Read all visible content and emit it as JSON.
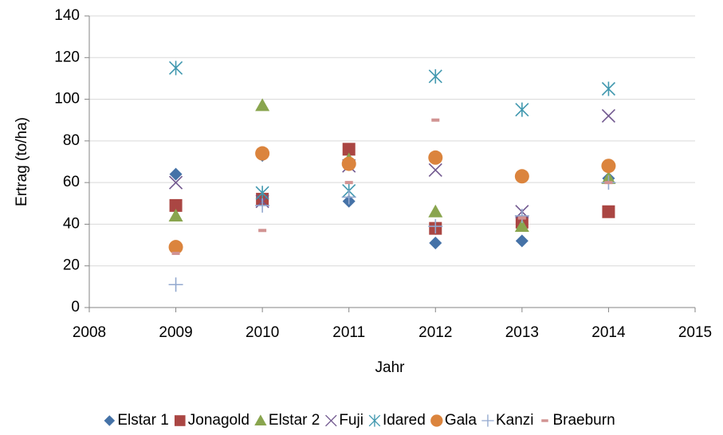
{
  "chart_data": {
    "type": "scatter",
    "xlabel": "Jahr",
    "ylabel": "Ertrag (to/ha)",
    "xlim": [
      2008,
      2015
    ],
    "xticks": [
      2008,
      2009,
      2010,
      2011,
      2012,
      2013,
      2014,
      2015
    ],
    "ylim": [
      0,
      140
    ],
    "yticks": [
      0,
      20,
      40,
      60,
      80,
      100,
      120,
      140
    ],
    "grid": true,
    "legend": "bottom",
    "x": [
      2009,
      2010,
      2011,
      2012,
      2013,
      2014
    ],
    "series": [
      {
        "name": "Elstar 1",
        "color": "#4572a7",
        "marker": "diamond",
        "values": [
          64,
          73,
          51,
          31,
          32,
          62
        ]
      },
      {
        "name": "Jonagold",
        "color": "#aa4643",
        "marker": "square",
        "values": [
          49,
          52,
          76,
          38,
          41,
          46
        ]
      },
      {
        "name": "Elstar 2",
        "color": "#89a54e",
        "marker": "triangle",
        "values": [
          44,
          97,
          71,
          46,
          39,
          62
        ]
      },
      {
        "name": "Fuji",
        "color": "#71588f",
        "marker": "x",
        "values": [
          60,
          51,
          68,
          66,
          46,
          92
        ]
      },
      {
        "name": "Idared",
        "color": "#4198af",
        "marker": "star",
        "values": [
          115,
          55,
          56,
          111,
          95,
          105
        ]
      },
      {
        "name": "Gala",
        "color": "#db843d",
        "marker": "circle",
        "values": [
          29,
          74,
          69,
          72,
          63,
          68
        ]
      },
      {
        "name": "Kanzi",
        "color": "#93a9cf",
        "marker": "plus",
        "values": [
          11,
          49,
          53,
          39,
          44,
          60
        ]
      },
      {
        "name": "Braeburn",
        "color": "#d19392",
        "marker": "dash",
        "values": [
          26,
          37,
          60,
          90,
          43,
          60
        ]
      }
    ]
  }
}
